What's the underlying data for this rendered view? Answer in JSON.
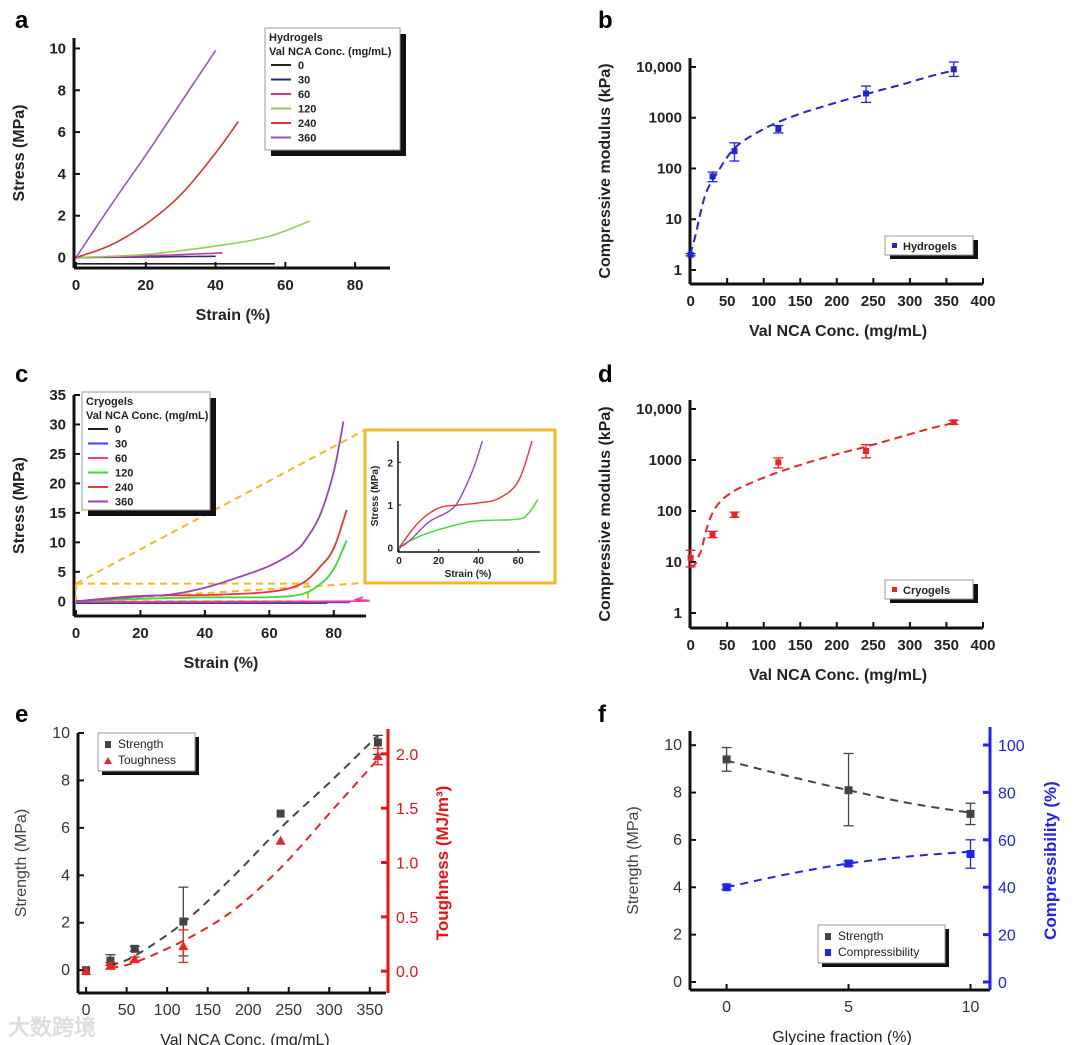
{
  "watermark": "大数跨境",
  "chart_data": [
    {
      "panel": "a",
      "type": "line",
      "xlabel": "Strain (%)",
      "ylabel": "Stress (MPa)",
      "xlim": [
        0,
        90
      ],
      "ylim": [
        -0.5,
        10.5
      ],
      "xticks": [
        0,
        20,
        40,
        60,
        80
      ],
      "yticks": [
        0,
        2,
        4,
        6,
        8,
        10
      ],
      "legend": {
        "title1": "Hydrogels",
        "title2": "Val NCA Conc. (mg/mL)",
        "placement": "top-right"
      },
      "series": [
        {
          "name": "0",
          "color": "#222222",
          "points": [
            [
              0,
              -0.3
            ],
            [
              57,
              -0.3
            ]
          ]
        },
        {
          "name": "30",
          "color": "#2b2b7a",
          "points": [
            [
              0,
              0
            ],
            [
              20,
              0.03
            ],
            [
              40,
              0.06
            ]
          ]
        },
        {
          "name": "60",
          "color": "#cc33aa",
          "points": [
            [
              0,
              0
            ],
            [
              20,
              0.08
            ],
            [
              42,
              0.22
            ]
          ]
        },
        {
          "name": "120",
          "color": "#99cc55",
          "points": [
            [
              0,
              0
            ],
            [
              20,
              0.15
            ],
            [
              40,
              0.55
            ],
            [
              55,
              1.0
            ],
            [
              67,
              1.75
            ]
          ]
        },
        {
          "name": "240",
          "color": "#dd3333",
          "points": [
            [
              0,
              0
            ],
            [
              10,
              0.6
            ],
            [
              20,
              1.6
            ],
            [
              30,
              3.0
            ],
            [
              40,
              5.0
            ],
            [
              46.5,
              6.5
            ]
          ]
        },
        {
          "name": "360",
          "color": "#9955bb",
          "points": [
            [
              0,
              0
            ],
            [
              10,
              2.5
            ],
            [
              20,
              4.9
            ],
            [
              30,
              7.4
            ],
            [
              40,
              9.9
            ]
          ]
        }
      ]
    },
    {
      "panel": "b",
      "type": "scatter",
      "yscale": "log",
      "xlabel": "Val NCA Conc. (mg/mL)",
      "ylabel": "Compressive modulus (kPa)",
      "xlim": [
        -20,
        400
      ],
      "ylim": [
        1,
        15000
      ],
      "xticks": [
        0,
        50,
        100,
        150,
        200,
        250,
        300,
        350,
        400
      ],
      "yticks": [
        1,
        10,
        100,
        1000,
        10000
      ],
      "yticklabels": [
        "1",
        "10",
        "100",
        "1000",
        "10,000"
      ],
      "legend": {
        "label": "Hydrogels",
        "placement": "bottom-right"
      },
      "color": "#2222dd",
      "points": [
        [
          0,
          2,
          1.9,
          2.1
        ],
        [
          30,
          70,
          55,
          85
        ],
        [
          60,
          220,
          140,
          320
        ],
        [
          120,
          600,
          500,
          700
        ],
        [
          240,
          3000,
          2000,
          4200
        ],
        [
          360,
          9000,
          6500,
          12500
        ]
      ],
      "fit": [
        [
          0,
          2
        ],
        [
          10,
          8
        ],
        [
          20,
          30
        ],
        [
          40,
          100
        ],
        [
          60,
          250
        ],
        [
          100,
          600
        ],
        [
          150,
          1200
        ],
        [
          200,
          2000
        ],
        [
          250,
          3200
        ],
        [
          300,
          5000
        ],
        [
          360,
          8500
        ]
      ]
    },
    {
      "panel": "c",
      "type": "line",
      "xlabel": "Strain (%)",
      "ylabel": "Stress (MPa)",
      "xlim": [
        0,
        90
      ],
      "ylim": [
        -2.5,
        35
      ],
      "xticks": [
        0,
        20,
        40,
        60,
        80
      ],
      "yticks": [
        0,
        5,
        10,
        15,
        20,
        25,
        30,
        35
      ],
      "legend": {
        "title1": "Cryogels",
        "title2": "Val NCA Conc. (mg/mL)",
        "placement": "top-left"
      },
      "highlight_color": "#f5b820",
      "series": [
        {
          "name": "0",
          "color": "#222222",
          "points": [
            [
              0,
              -0.3
            ],
            [
              78,
              -0.3
            ]
          ]
        },
        {
          "name": "30",
          "color": "#3344ff",
          "points": [
            [
              0,
              -0.2
            ],
            [
              85,
              -0.2
            ]
          ]
        },
        {
          "name": "60",
          "color": "#ff3399",
          "points": [
            [
              0,
              -0.1
            ],
            [
              84,
              0
            ],
            [
              87,
              0.3
            ],
            [
              89,
              0.7
            ]
          ]
        },
        {
          "name": "120",
          "color": "#33dd33",
          "points": [
            [
              0,
              0
            ],
            [
              20,
              0.4
            ],
            [
              40,
              0.65
            ],
            [
              60,
              0.7
            ],
            [
              70,
              1.2
            ],
            [
              76,
              3
            ],
            [
              80,
              5.5
            ],
            [
              84,
              10.3
            ]
          ]
        },
        {
          "name": "240",
          "color": "#ee3333",
          "points": [
            [
              0,
              0
            ],
            [
              20,
              0.9
            ],
            [
              40,
              1.05
            ],
            [
              60,
              1.6
            ],
            [
              70,
              3
            ],
            [
              76,
              6
            ],
            [
              80,
              9
            ],
            [
              84,
              15.5
            ]
          ]
        },
        {
          "name": "360",
          "color": "#9944bb",
          "points": [
            [
              0,
              0
            ],
            [
              20,
              0.8
            ],
            [
              30,
              1.2
            ],
            [
              40,
              2.3
            ],
            [
              50,
              4
            ],
            [
              60,
              6
            ],
            [
              68,
              8.5
            ],
            [
              72,
              11
            ],
            [
              76,
              15
            ],
            [
              80,
              22
            ],
            [
              83,
              30.5
            ]
          ]
        }
      ],
      "inset": {
        "xlabel": "Strain (%)",
        "ylabel": "Stress (MPa)",
        "xlim": [
          0,
          70
        ],
        "ylim": [
          -0.1,
          2.5
        ],
        "xticks": [
          0,
          20,
          40,
          60
        ],
        "yticks": [
          0,
          1,
          2
        ],
        "series": [
          {
            "name": "120",
            "color": "#33dd33",
            "points": [
              [
                0,
                0
              ],
              [
                5,
                0.15
              ],
              [
                15,
                0.35
              ],
              [
                30,
                0.55
              ],
              [
                40,
                0.63
              ],
              [
                60,
                0.67
              ],
              [
                65,
                0.8
              ],
              [
                70,
                1.13
              ]
            ]
          },
          {
            "name": "240",
            "color": "#ee3333",
            "points": [
              [
                0,
                0
              ],
              [
                10,
                0.6
              ],
              [
                20,
                0.93
              ],
              [
                30,
                1.0
              ],
              [
                40,
                1.05
              ],
              [
                50,
                1.15
              ],
              [
                60,
                1.55
              ],
              [
                67,
                2.5
              ]
            ]
          },
          {
            "name": "360",
            "color": "#9944bb",
            "points": [
              [
                0,
                0
              ],
              [
                5,
                0.15
              ],
              [
                15,
                0.6
              ],
              [
                25,
                0.85
              ],
              [
                30,
                1.1
              ],
              [
                37,
                1.8
              ],
              [
                42,
                2.5
              ]
            ]
          }
        ]
      }
    },
    {
      "panel": "d",
      "type": "scatter",
      "yscale": "log",
      "xlabel": "Val NCA Conc. (mg/mL)",
      "ylabel": "Compressive modulus (kPa)",
      "xlim": [
        -20,
        400
      ],
      "ylim": [
        1,
        15000
      ],
      "xticks": [
        0,
        50,
        100,
        150,
        200,
        250,
        300,
        350,
        400
      ],
      "yticks": [
        1,
        10,
        100,
        1000,
        10000
      ],
      "yticklabels": [
        "1",
        "10",
        "100",
        "1000",
        "10,000"
      ],
      "legend": {
        "label": "Cryogels",
        "placement": "bottom-right"
      },
      "color": "#ee2222",
      "points": [
        [
          0,
          12,
          8,
          17
        ],
        [
          30,
          35,
          30,
          40
        ],
        [
          60,
          85,
          75,
          95
        ],
        [
          120,
          900,
          700,
          1100
        ],
        [
          240,
          1500,
          1100,
          2000
        ],
        [
          360,
          5500,
          5000,
          6000
        ]
      ],
      "fit": [
        [
          0,
          8
        ],
        [
          10,
          12
        ],
        [
          20,
          35
        ],
        [
          40,
          150
        ],
        [
          60,
          250
        ],
        [
          100,
          450
        ],
        [
          150,
          800
        ],
        [
          200,
          1300
        ],
        [
          250,
          2000
        ],
        [
          300,
          3200
        ],
        [
          360,
          5300
        ]
      ]
    },
    {
      "panel": "e",
      "type": "scatter",
      "xlabel": "Val NCA Conc. (mg/mL)",
      "ylabel": "Strength (MPa)",
      "y2label": "Toughness (MJ/m³)",
      "xlim": [
        -10,
        370
      ],
      "ylim": [
        -0.5,
        10
      ],
      "y2lim": [
        -0.1,
        2.1
      ],
      "xticks": [
        0,
        50,
        100,
        150,
        200,
        250,
        300,
        350
      ],
      "yticks": [
        0,
        2,
        4,
        6,
        8,
        10
      ],
      "y2ticks": [
        0.0,
        0.5,
        1.0,
        1.5,
        2.0
      ],
      "y2ticklabels": [
        "0.0",
        "0.5",
        "1.0",
        "1.5",
        "2.0"
      ],
      "legend": {
        "placement": "top-left"
      },
      "series": [
        {
          "name": "Strength",
          "color": "#444444",
          "marker": "square",
          "axis": "left",
          "points": [
            [
              0,
              0,
              0,
              0
            ],
            [
              30,
              0.4,
              0.2,
              0.65
            ],
            [
              60,
              0.9,
              0.8,
              1.0
            ],
            [
              120,
              2.05,
              0.6,
              3.5
            ],
            [
              240,
              6.6,
              6.6,
              6.6
            ],
            [
              360,
              9.6,
              9.1,
              9.9
            ]
          ],
          "fit": [
            [
              30,
              0.2
            ],
            [
              60,
              0.6
            ],
            [
              120,
              2.0
            ],
            [
              180,
              3.9
            ],
            [
              240,
              6.0
            ],
            [
              300,
              7.9
            ],
            [
              360,
              9.9
            ]
          ]
        },
        {
          "name": "Toughness",
          "color": "#ee2222",
          "marker": "triangle",
          "axis": "right",
          "points": [
            [
              0,
              0,
              0,
              0
            ],
            [
              30,
              0.05,
              0.02,
              0.08
            ],
            [
              60,
              0.11,
              0.09,
              0.13
            ],
            [
              120,
              0.23,
              0.08,
              0.38
            ],
            [
              240,
              1.2,
              1.2,
              1.2
            ],
            [
              360,
              1.98,
              1.9,
              2.05
            ]
          ],
          "fit": [
            [
              30,
              0.03
            ],
            [
              60,
              0.08
            ],
            [
              120,
              0.28
            ],
            [
              180,
              0.55
            ],
            [
              240,
              0.95
            ],
            [
              300,
              1.45
            ],
            [
              360,
              1.95
            ]
          ]
        }
      ]
    },
    {
      "panel": "f",
      "type": "scatter",
      "xlabel": "Glycine fraction (%)",
      "ylabel": "Strength (MPa)",
      "y2label": "Compressibility (%)",
      "xlim": [
        -1.5,
        10.8
      ],
      "ylim": [
        0,
        10.6
      ],
      "y2lim": [
        0,
        100
      ],
      "xticks": [
        0,
        5,
        10
      ],
      "yticks": [
        0,
        2,
        4,
        6,
        8,
        10
      ],
      "y2ticks": [
        0,
        20,
        40,
        60,
        80,
        100
      ],
      "legend": {
        "placement": "bottom-right"
      },
      "series": [
        {
          "name": "Strength",
          "color": "#444444",
          "marker": "square",
          "axis": "left",
          "points": [
            [
              0,
              9.4,
              8.9,
              9.9
            ],
            [
              5,
              8.1,
              6.6,
              9.65
            ],
            [
              10,
              7.1,
              6.65,
              7.55
            ]
          ],
          "fit": [
            [
              0,
              9.35
            ],
            [
              2.5,
              8.7
            ],
            [
              5,
              8.1
            ],
            [
              7.5,
              7.55
            ],
            [
              10,
              7.15
            ]
          ]
        },
        {
          "name": "Compressibility",
          "color": "#2222ee",
          "marker": "square",
          "axis": "right",
          "points": [
            [
              0,
              40,
              39,
              41
            ],
            [
              5,
              50,
              49,
              51
            ],
            [
              10,
              54,
              48,
              60
            ]
          ],
          "fit": [
            [
              0,
              40
            ],
            [
              2.5,
              45.5
            ],
            [
              5,
              50
            ],
            [
              7.5,
              53
            ],
            [
              10,
              55
            ]
          ]
        }
      ]
    }
  ]
}
